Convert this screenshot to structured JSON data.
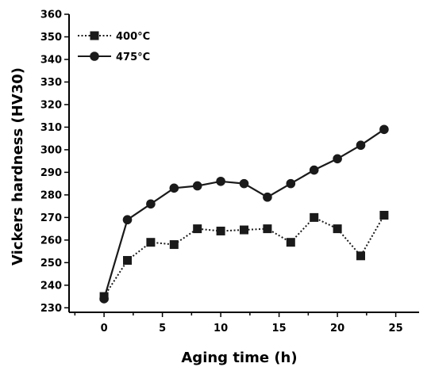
{
  "chart_data": {
    "type": "line",
    "title": "",
    "xlabel": "Aging time (h)",
    "ylabel": "Vickers hardness (HV30)",
    "xlim": [
      -3,
      27
    ],
    "ylim": [
      228,
      360
    ],
    "xticks": [
      0,
      5,
      10,
      15,
      20,
      25
    ],
    "xticks_minor": [
      -2.5,
      2.5,
      7.5,
      12.5,
      17.5,
      22.5
    ],
    "yticks": [
      230,
      240,
      250,
      260,
      270,
      280,
      290,
      300,
      310,
      320,
      330,
      340,
      350,
      360
    ],
    "grid": false,
    "legend_position": "top-left",
    "series": [
      {
        "name": "400°C",
        "marker": "square",
        "line_style": "dotted",
        "color": "#1a1a1a",
        "x": [
          0,
          2,
          4,
          6,
          8,
          10,
          12,
          14,
          16,
          18,
          20,
          22,
          24
        ],
        "y": [
          235,
          251,
          259,
          258,
          265,
          264,
          264.5,
          265,
          259,
          270,
          265,
          253,
          271
        ]
      },
      {
        "name": "475°C",
        "marker": "circle",
        "line_style": "solid",
        "color": "#1a1a1a",
        "x": [
          0,
          2,
          4,
          6,
          8,
          10,
          12,
          14,
          16,
          18,
          20,
          22,
          24
        ],
        "y": [
          234,
          269,
          276,
          283,
          284,
          286,
          285,
          279,
          285,
          291,
          296,
          302,
          309
        ]
      }
    ]
  }
}
